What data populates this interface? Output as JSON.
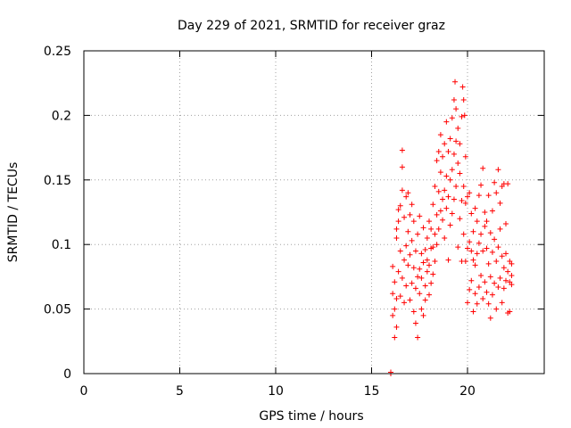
{
  "chart_data": {
    "type": "scatter",
    "title": "Day 229 of 2021, SRMTID for receiver graz",
    "xlabel": "GPS time / hours",
    "ylabel": "SRMTID / TECUs",
    "xlim": [
      0,
      24
    ],
    "ylim": [
      0,
      0.25
    ],
    "xticks": [
      0,
      5,
      10,
      15,
      20
    ],
    "xtick_labels": [
      "0",
      "5",
      "10",
      "15",
      "20"
    ],
    "yticks": [
      0,
      0.05,
      0.1,
      0.15,
      0.2,
      0.25
    ],
    "ytick_labels": [
      "0",
      "0.05",
      "0.1",
      "0.15",
      "0.2",
      "0.25"
    ],
    "grid": true,
    "marker": "+",
    "series": [
      {
        "name": "SRMTID",
        "color": "#ff0000",
        "x": [
          16.0,
          16.0,
          16.1,
          16.1,
          16.1,
          16.2,
          16.2,
          16.2,
          16.3,
          16.3,
          16.3,
          16.3,
          16.4,
          16.4,
          16.4,
          16.5,
          16.5,
          16.5,
          16.6,
          16.6,
          16.6,
          16.6,
          16.7,
          16.7,
          16.7,
          16.8,
          16.8,
          16.8,
          16.9,
          16.9,
          16.9,
          17.0,
          17.0,
          17.0,
          17.1,
          17.1,
          17.1,
          17.2,
          17.2,
          17.2,
          17.3,
          17.3,
          17.3,
          17.4,
          17.4,
          17.4,
          17.5,
          17.5,
          17.5,
          17.6,
          17.6,
          17.6,
          17.7,
          17.7,
          17.7,
          17.8,
          17.8,
          17.8,
          17.9,
          17.9,
          17.9,
          18.0,
          18.0,
          18.0,
          18.1,
          18.1,
          18.1,
          18.2,
          18.2,
          18.2,
          18.3,
          18.3,
          18.3,
          18.4,
          18.4,
          18.4,
          18.5,
          18.5,
          18.5,
          18.6,
          18.6,
          18.6,
          18.7,
          18.7,
          18.7,
          18.8,
          18.8,
          18.8,
          18.9,
          18.9,
          18.9,
          19.0,
          19.0,
          19.0,
          19.1,
          19.1,
          19.1,
          19.2,
          19.2,
          19.2,
          19.3,
          19.3,
          19.3,
          19.35,
          19.4,
          19.4,
          19.4,
          19.5,
          19.5,
          19.5,
          19.6,
          19.6,
          19.6,
          19.7,
          19.7,
          19.7,
          19.75,
          19.8,
          19.8,
          19.8,
          19.85,
          19.9,
          19.9,
          19.9,
          20.0,
          20.0,
          20.0,
          20.1,
          20.1,
          20.1,
          20.2,
          20.2,
          20.2,
          20.3,
          20.3,
          20.3,
          20.4,
          20.4,
          20.4,
          20.5,
          20.5,
          20.5,
          20.6,
          20.6,
          20.6,
          20.7,
          20.7,
          20.7,
          20.8,
          20.8,
          20.8,
          20.9,
          20.9,
          20.9,
          21.0,
          21.0,
          21.0,
          21.1,
          21.1,
          21.1,
          21.2,
          21.2,
          21.2,
          21.3,
          21.3,
          21.3,
          21.4,
          21.4,
          21.4,
          21.5,
          21.5,
          21.5,
          21.6,
          21.6,
          21.6,
          21.7,
          21.7,
          21.7,
          21.8,
          21.8,
          21.8,
          21.9,
          21.9,
          21.9,
          22.0,
          22.0,
          22.0,
          22.1,
          22.1,
          22.1,
          22.2,
          22.2,
          22.2,
          22.3,
          22.3,
          22.3
        ],
        "y": [
          0.0,
          0.001,
          0.045,
          0.062,
          0.083,
          0.028,
          0.071,
          0.05,
          0.036,
          0.058,
          0.112,
          0.105,
          0.079,
          0.118,
          0.127,
          0.06,
          0.095,
          0.13,
          0.074,
          0.16,
          0.173,
          0.142,
          0.088,
          0.121,
          0.055,
          0.099,
          0.137,
          0.068,
          0.084,
          0.11,
          0.14,
          0.057,
          0.123,
          0.092,
          0.07,
          0.103,
          0.131,
          0.048,
          0.082,
          0.118,
          0.066,
          0.095,
          0.039,
          0.075,
          0.108,
          0.028,
          0.081,
          0.122,
          0.062,
          0.093,
          0.074,
          0.05,
          0.086,
          0.113,
          0.045,
          0.068,
          0.096,
          0.057,
          0.079,
          0.105,
          0.088,
          0.061,
          0.118,
          0.084,
          0.07,
          0.097,
          0.112,
          0.077,
          0.131,
          0.098,
          0.087,
          0.145,
          0.108,
          0.123,
          0.165,
          0.1,
          0.112,
          0.172,
          0.141,
          0.126,
          0.185,
          0.156,
          0.135,
          0.168,
          0.119,
          0.142,
          0.178,
          0.105,
          0.153,
          0.195,
          0.128,
          0.088,
          0.137,
          0.172,
          0.115,
          0.15,
          0.182,
          0.124,
          0.158,
          0.198,
          0.135,
          0.17,
          0.212,
          0.226,
          0.145,
          0.18,
          0.205,
          0.098,
          0.163,
          0.19,
          0.12,
          0.155,
          0.178,
          0.087,
          0.134,
          0.199,
          0.222,
          0.108,
          0.145,
          0.212,
          0.2,
          0.087,
          0.132,
          0.168,
          0.055,
          0.097,
          0.137,
          0.065,
          0.102,
          0.14,
          0.072,
          0.095,
          0.124,
          0.048,
          0.088,
          0.11,
          0.062,
          0.084,
          0.128,
          0.054,
          0.093,
          0.118,
          0.067,
          0.101,
          0.138,
          0.076,
          0.108,
          0.146,
          0.058,
          0.095,
          0.159,
          0.071,
          0.114,
          0.125,
          0.063,
          0.097,
          0.118,
          0.054,
          0.085,
          0.138,
          0.043,
          0.075,
          0.109,
          0.061,
          0.094,
          0.126,
          0.07,
          0.104,
          0.148,
          0.05,
          0.087,
          0.14,
          0.067,
          0.098,
          0.158,
          0.074,
          0.112,
          0.132,
          0.055,
          0.091,
          0.145,
          0.066,
          0.082,
          0.147,
          0.072,
          0.093,
          0.116,
          0.047,
          0.079,
          0.147,
          0.048,
          0.071,
          0.087,
          0.076,
          0.085,
          0.069
        ]
      }
    ]
  }
}
